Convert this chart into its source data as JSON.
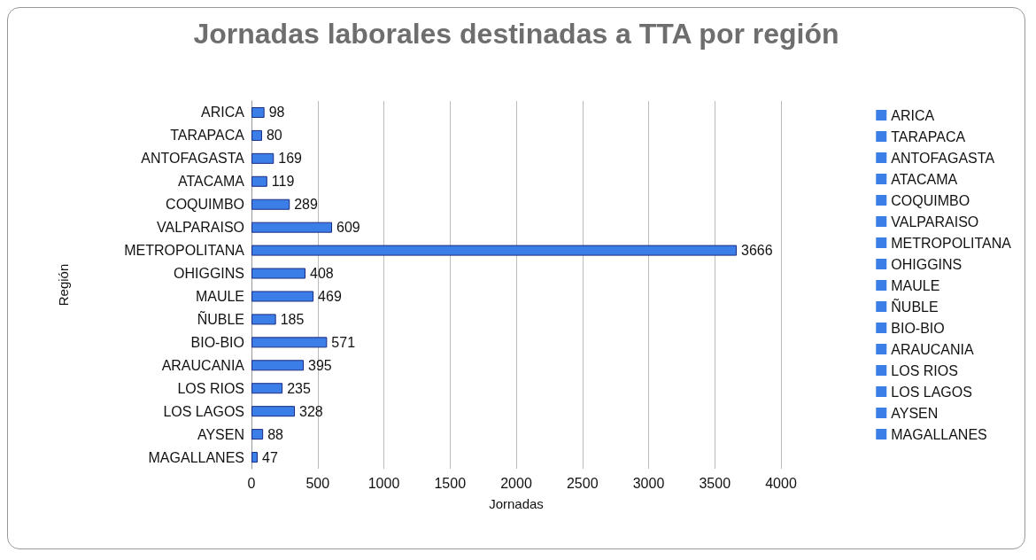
{
  "chart_data": {
    "type": "bar",
    "orientation": "horizontal",
    "title": "Jornadas laborales destinadas a TTA por región",
    "xlabel": "Jornadas",
    "ylabel": "Región",
    "categories": [
      "ARICA",
      "TARAPACA",
      "ANTOFAGASTA",
      "ATACAMA",
      "COQUIMBO",
      "VALPARAISO",
      "METROPOLITANA",
      "OHIGGINS",
      "MAULE",
      "ÑUBLE",
      "BIO-BIO",
      "ARAUCANIA",
      "LOS RIOS",
      "LOS LAGOS",
      "AYSEN",
      "MAGALLANES"
    ],
    "series": [
      {
        "name": "ARICA",
        "color": "#3b7ee8",
        "values": [
          98,
          null,
          null,
          null,
          null,
          null,
          null,
          null,
          null,
          null,
          null,
          null,
          null,
          null,
          null,
          null
        ]
      },
      {
        "name": "TARAPACA",
        "color": "#3b7ee8",
        "values": [
          null,
          80,
          null,
          null,
          null,
          null,
          null,
          null,
          null,
          null,
          null,
          null,
          null,
          null,
          null,
          null
        ]
      },
      {
        "name": "ANTOFAGASTA",
        "color": "#3b7ee8",
        "values": [
          null,
          null,
          169,
          null,
          null,
          null,
          null,
          null,
          null,
          null,
          null,
          null,
          null,
          null,
          null,
          null
        ]
      },
      {
        "name": "ATACAMA",
        "color": "#3b7ee8",
        "values": [
          null,
          null,
          null,
          119,
          null,
          null,
          null,
          null,
          null,
          null,
          null,
          null,
          null,
          null,
          null,
          null
        ]
      },
      {
        "name": "COQUIMBO",
        "color": "#3b7ee8",
        "values": [
          null,
          null,
          null,
          null,
          289,
          null,
          null,
          null,
          null,
          null,
          null,
          null,
          null,
          null,
          null,
          null
        ]
      },
      {
        "name": "VALPARAISO",
        "color": "#3b7ee8",
        "values": [
          null,
          null,
          null,
          null,
          null,
          609,
          null,
          null,
          null,
          null,
          null,
          null,
          null,
          null,
          null,
          null
        ]
      },
      {
        "name": "METROPOLITANA",
        "color": "#3b7ee8",
        "values": [
          null,
          null,
          null,
          null,
          null,
          null,
          3666,
          null,
          null,
          null,
          null,
          null,
          null,
          null,
          null,
          null
        ]
      },
      {
        "name": "OHIGGINS",
        "color": "#3b7ee8",
        "values": [
          null,
          null,
          null,
          null,
          null,
          null,
          null,
          408,
          null,
          null,
          null,
          null,
          null,
          null,
          null,
          null
        ]
      },
      {
        "name": "MAULE",
        "color": "#3b7ee8",
        "values": [
          null,
          null,
          null,
          null,
          null,
          null,
          null,
          null,
          469,
          null,
          null,
          null,
          null,
          null,
          null,
          null
        ]
      },
      {
        "name": "ÑUBLE",
        "color": "#3b7ee8",
        "values": [
          null,
          null,
          null,
          null,
          null,
          null,
          null,
          null,
          null,
          185,
          null,
          null,
          null,
          null,
          null,
          null
        ]
      },
      {
        "name": "BIO-BIO",
        "color": "#3b7ee8",
        "values": [
          null,
          null,
          null,
          null,
          null,
          null,
          null,
          null,
          null,
          null,
          571,
          null,
          null,
          null,
          null,
          null
        ]
      },
      {
        "name": "ARAUCANIA",
        "color": "#3b7ee8",
        "values": [
          null,
          null,
          null,
          null,
          null,
          null,
          null,
          null,
          null,
          null,
          null,
          395,
          null,
          null,
          null,
          null
        ]
      },
      {
        "name": "LOS RIOS",
        "color": "#3b7ee8",
        "values": [
          null,
          null,
          null,
          null,
          null,
          null,
          null,
          null,
          null,
          null,
          null,
          null,
          235,
          null,
          null,
          null
        ]
      },
      {
        "name": "LOS LAGOS",
        "color": "#3b7ee8",
        "values": [
          null,
          null,
          null,
          null,
          null,
          null,
          null,
          null,
          null,
          null,
          null,
          null,
          null,
          328,
          null,
          null
        ]
      },
      {
        "name": "AYSEN",
        "color": "#3b7ee8",
        "values": [
          null,
          null,
          null,
          null,
          null,
          null,
          null,
          null,
          null,
          null,
          null,
          null,
          null,
          null,
          88,
          null
        ]
      },
      {
        "name": "MAGALLANES",
        "color": "#3b7ee8",
        "values": [
          null,
          null,
          null,
          null,
          null,
          null,
          null,
          null,
          null,
          null,
          null,
          null,
          null,
          null,
          null,
          47
        ]
      }
    ],
    "xlim": [
      0,
      4000
    ],
    "xticks": [
      0,
      500,
      1000,
      1500,
      2000,
      2500,
      3000,
      3500,
      4000
    ],
    "grid": "x",
    "legend": "right",
    "data_labels": true
  }
}
